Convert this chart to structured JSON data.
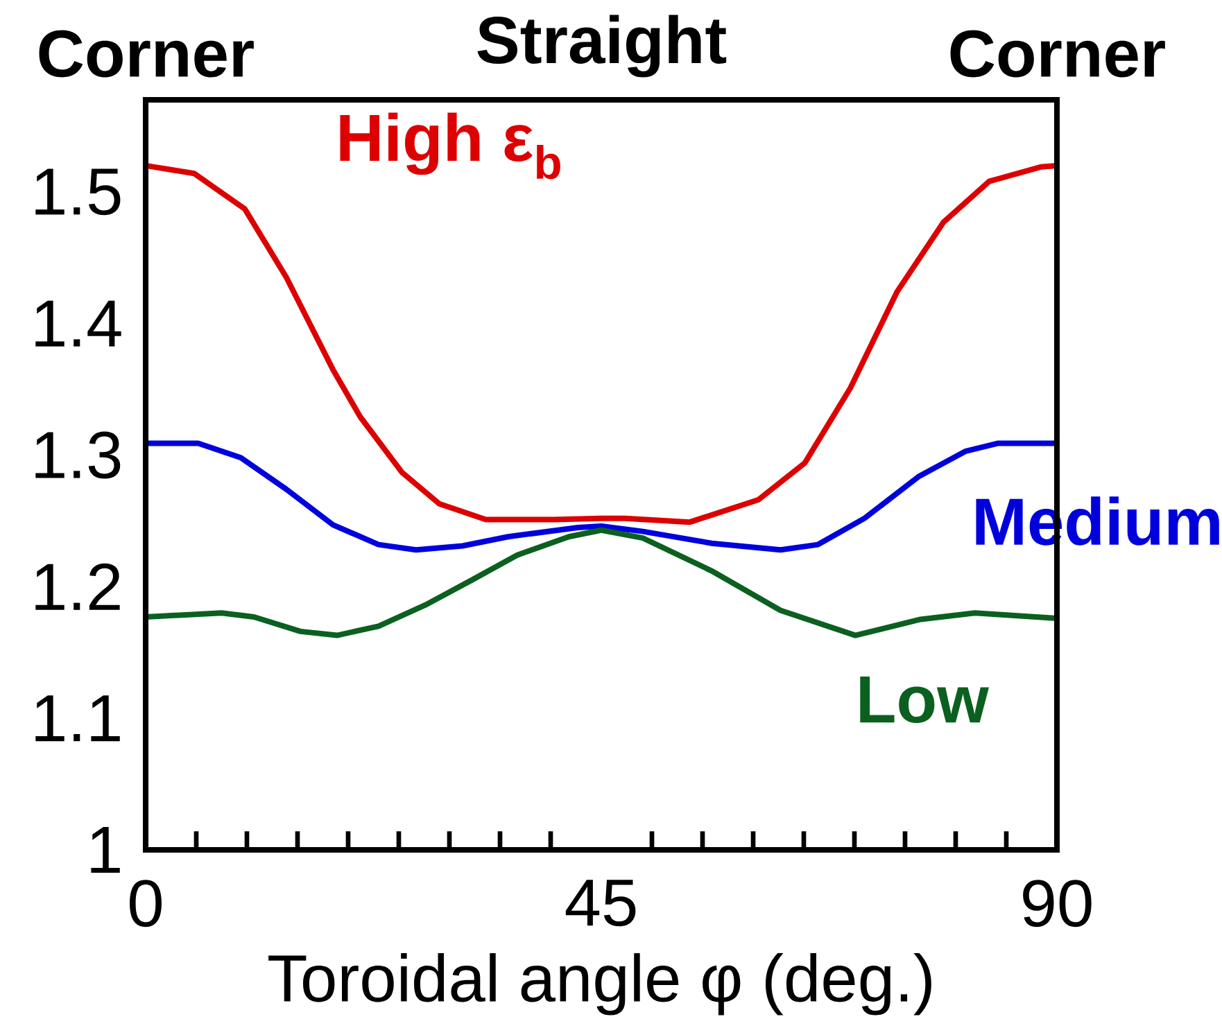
{
  "chart_data": {
    "type": "line",
    "xlabel": "Toroidal angle φ (deg.)",
    "xlim": [
      0,
      90
    ],
    "xticks": [
      0,
      45,
      90
    ],
    "annotations": [
      "Corner",
      "Straight",
      "Corner"
    ],
    "ylim": [
      1,
      1.57
    ],
    "yticks": [
      1,
      1.1,
      1.2,
      1.3,
      1.4,
      1.5
    ],
    "series": [
      {
        "name": "High ε$_{b}$",
        "color": "#dd0000",
        "x": [
          0,
          4.8,
          9.8,
          13.9,
          18.5,
          21.2,
          25.3,
          29.0,
          33.6,
          40.4,
          45,
          47.3,
          53.7,
          60.5,
          65.1,
          69.6,
          74.2,
          78.8,
          83.3,
          88.4,
          90
        ],
        "values": [
          1.52,
          1.514,
          1.487,
          1.435,
          1.365,
          1.329,
          1.287,
          1.263,
          1.251,
          1.251,
          1.252,
          1.252,
          1.249,
          1.266,
          1.294,
          1.351,
          1.424,
          1.477,
          1.508,
          1.519,
          1.52
        ]
      },
      {
        "name": "Medium",
        "color": "#0000dd",
        "x": [
          0,
          5.2,
          9.4,
          13.9,
          18.5,
          23.0,
          26.7,
          31.3,
          35.8,
          42.7,
          45,
          49.1,
          55.9,
          62.7,
          66.4,
          71.0,
          76.4,
          81.0,
          84.2,
          90
        ],
        "values": [
          1.309,
          1.309,
          1.298,
          1.274,
          1.247,
          1.232,
          1.228,
          1.231,
          1.238,
          1.245,
          1.246,
          1.242,
          1.233,
          1.228,
          1.232,
          1.252,
          1.284,
          1.303,
          1.309,
          1.309
        ]
      },
      {
        "name": "Low",
        "color": "#0b6020",
        "x": [
          0,
          7.5,
          10.7,
          15.3,
          18.9,
          23.0,
          27.6,
          32.2,
          36.7,
          41.8,
          45,
          49.1,
          55.9,
          62.7,
          70.1,
          76.4,
          81.9,
          90
        ],
        "values": [
          1.177,
          1.18,
          1.177,
          1.166,
          1.163,
          1.17,
          1.186,
          1.205,
          1.224,
          1.238,
          1.243,
          1.237,
          1.212,
          1.182,
          1.163,
          1.175,
          1.18,
          1.176
        ]
      }
    ]
  }
}
